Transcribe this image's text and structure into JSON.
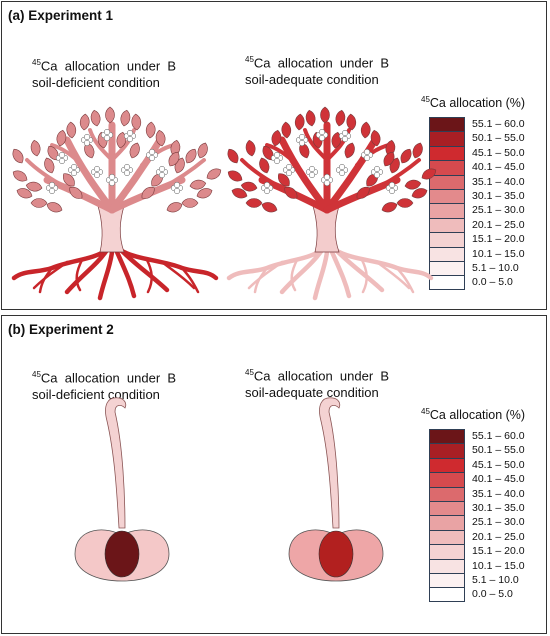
{
  "experiment1": {
    "title": "(a) Experiment 1",
    "left": {
      "isotope": "45",
      "heading_rest": "Ca  allocation  under  B",
      "heading_line2": "soil-deficient condition"
    },
    "right": {
      "isotope": "45",
      "heading_rest": "Ca  allocation  under  B",
      "heading_line2": "soil-adequate condition"
    },
    "legend_isotope": "45",
    "legend_title_rest": "Ca allocation (%)"
  },
  "experiment2": {
    "title": "(b) Experiment 2",
    "left": {
      "isotope": "45",
      "heading_rest": "Ca  allocation  under  B",
      "heading_line2": "soil-deficient condition"
    },
    "right": {
      "isotope": "45",
      "heading_rest": "Ca  allocation  under  B",
      "heading_line2": "soil-adequate condition"
    },
    "legend_isotope": "45",
    "legend_title_rest": "Ca allocation (%)"
  },
  "legend_ranges": [
    {
      "label": "55.1 – 60.0",
      "color": "#6b1518"
    },
    {
      "label": "50.1 – 55.0",
      "color": "#a81f24"
    },
    {
      "label": "45.1 – 50.0",
      "color": "#cf2a2f"
    },
    {
      "label": "40.1 – 45.0",
      "color": "#d64a4e"
    },
    {
      "label": "35.1 – 40.0",
      "color": "#dc6a6d"
    },
    {
      "label": "30.1 – 35.0",
      "color": "#e38a8c"
    },
    {
      "label": "25.1 – 30.0",
      "color": "#e9a3a4"
    },
    {
      "label": "20.1 – 25.0",
      "color": "#efbcbc"
    },
    {
      "label": "15.1 – 20.0",
      "color": "#f4d2d2"
    },
    {
      "label": "10.1 – 15.0",
      "color": "#f8e3e3"
    },
    {
      "label": "5.1 – 10.0",
      "color": "#fcf1f1"
    },
    {
      "label": "0.0 – 5.0",
      "color": "#ffffff"
    }
  ],
  "colors": {
    "tree_deficient_canopy": "#dc8a8c",
    "tree_deficient_trunk": "#f4d2d2",
    "tree_deficient_roots": "#c8252a",
    "tree_adequate_canopy": "#cf3338",
    "tree_adequate_trunk": "#f3cccc",
    "tree_adequate_roots": "#efbcbc",
    "fruit_deficient_flesh": "#f4c8c8",
    "fruit_deficient_seed": "#6b1518",
    "fruit_deficient_stem": "#f4d2d2",
    "fruit_adequate_flesh": "#eea6a7",
    "fruit_adequate_seed": "#b2201f",
    "fruit_adequate_stem": "#f4d2d2"
  }
}
